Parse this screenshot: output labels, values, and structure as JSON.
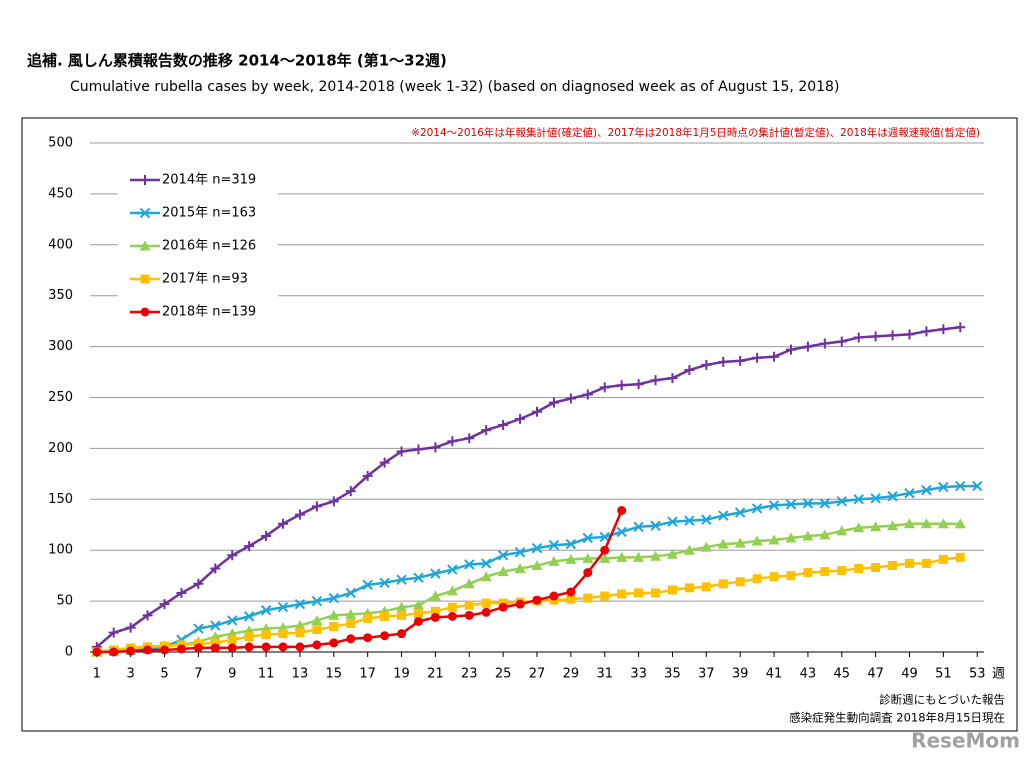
{
  "chart_data": {
    "type": "line",
    "title": "追補. 風しん累積報告数の推移  2014〜2018年 (第1〜32週)",
    "subtitle": "Cumulative rubella cases by week, 2014-2018 (week 1-32)  (based on diagnosed week as of August 15, 2018)",
    "note": "※2014〜2016年は年報集計値(確定値)、2017年は2018年1月5日時点の集計値(暫定値)、2018年は週報速報値(暫定値)",
    "x_label": "週",
    "footnotes": [
      "診断週にもとづいた報告",
      "感染症発生動向調査 2018年8月15日現在"
    ],
    "watermark": "ReseMom",
    "x": [
      1,
      2,
      3,
      4,
      5,
      6,
      7,
      8,
      9,
      10,
      11,
      12,
      13,
      14,
      15,
      16,
      17,
      18,
      19,
      20,
      21,
      22,
      23,
      24,
      25,
      26,
      27,
      28,
      29,
      30,
      31,
      32,
      33,
      34,
      35,
      36,
      37,
      38,
      39,
      40,
      41,
      42,
      43,
      44,
      45,
      46,
      47,
      48,
      49,
      50,
      51,
      52,
      53
    ],
    "xlim": [
      0.6,
      53.4
    ],
    "xticks": [
      1,
      3,
      5,
      7,
      9,
      11,
      13,
      15,
      17,
      19,
      21,
      23,
      25,
      27,
      29,
      31,
      33,
      35,
      37,
      39,
      41,
      43,
      45,
      47,
      49,
      51,
      53
    ],
    "ylim": [
      0,
      500
    ],
    "yticks": [
      0,
      50,
      100,
      150,
      200,
      250,
      300,
      350,
      400,
      450,
      500
    ],
    "grid": true,
    "legend": "upper left",
    "series": [
      {
        "name": "2014年 n=319",
        "color": "#7030a0",
        "marker": "plus",
        "values": [
          5,
          19,
          24,
          36,
          47,
          58,
          67,
          82,
          95,
          104,
          114,
          126,
          135,
          143,
          148,
          158,
          173,
          186,
          197,
          199,
          201,
          207,
          210,
          218,
          223,
          229,
          236,
          245,
          249,
          253,
          260,
          262,
          263,
          267,
          269,
          277,
          282,
          285,
          286,
          289,
          290,
          297,
          300,
          303,
          305,
          309,
          310,
          311,
          312,
          315,
          317,
          319,
          null
        ]
      },
      {
        "name": "2015年 n=163",
        "color": "#1ca6dc",
        "marker": "cross",
        "values": [
          0,
          1,
          2,
          3,
          5,
          12,
          23,
          26,
          31,
          35,
          41,
          44,
          47,
          50,
          53,
          58,
          66,
          68,
          71,
          73,
          77,
          81,
          86,
          87,
          95,
          98,
          102,
          105,
          106,
          112,
          113,
          118,
          123,
          124,
          128,
          129,
          130,
          134,
          137,
          141,
          144,
          145,
          146,
          146,
          148,
          150,
          151,
          153,
          156,
          159,
          162,
          163,
          163
        ]
      },
      {
        "name": "2016年 n=126",
        "color": "#92d050",
        "marker": "triangle",
        "values": [
          0,
          2,
          3,
          5,
          6,
          7,
          10,
          15,
          18,
          21,
          23,
          24,
          26,
          31,
          36,
          37,
          38,
          40,
          44,
          46,
          55,
          60,
          67,
          74,
          79,
          82,
          85,
          89,
          91,
          92,
          92,
          93,
          93,
          94,
          96,
          100,
          103,
          106,
          107,
          109,
          110,
          112,
          114,
          115,
          119,
          122,
          123,
          124,
          126,
          126,
          126,
          126,
          null
        ]
      },
      {
        "name": "2017年 n=93",
        "color": "#ffc000",
        "marker": "square",
        "values": [
          0,
          2,
          4,
          5,
          6,
          7,
          8,
          9,
          12,
          15,
          17,
          18,
          19,
          22,
          25,
          28,
          33,
          35,
          36,
          38,
          40,
          44,
          46,
          48,
          48,
          49,
          50,
          51,
          52,
          53,
          55,
          57,
          58,
          58,
          61,
          63,
          64,
          67,
          69,
          72,
          74,
          75,
          78,
          79,
          80,
          82,
          83,
          85,
          87,
          87,
          91,
          93,
          null
        ]
      },
      {
        "name": "2018年 n=139",
        "color": "#ee0000",
        "marker": "circle",
        "values": [
          0,
          0,
          1,
          2,
          2,
          3,
          4,
          4,
          4,
          5,
          5,
          5,
          5,
          7,
          9,
          13,
          14,
          16,
          18,
          30,
          34,
          35,
          36,
          39,
          44,
          47,
          51,
          55,
          59,
          78,
          100,
          139,
          null,
          null,
          null,
          null,
          null,
          null,
          null,
          null,
          null,
          null,
          null,
          null,
          null,
          null,
          null,
          null,
          null,
          null,
          null,
          null,
          null
        ]
      }
    ]
  }
}
